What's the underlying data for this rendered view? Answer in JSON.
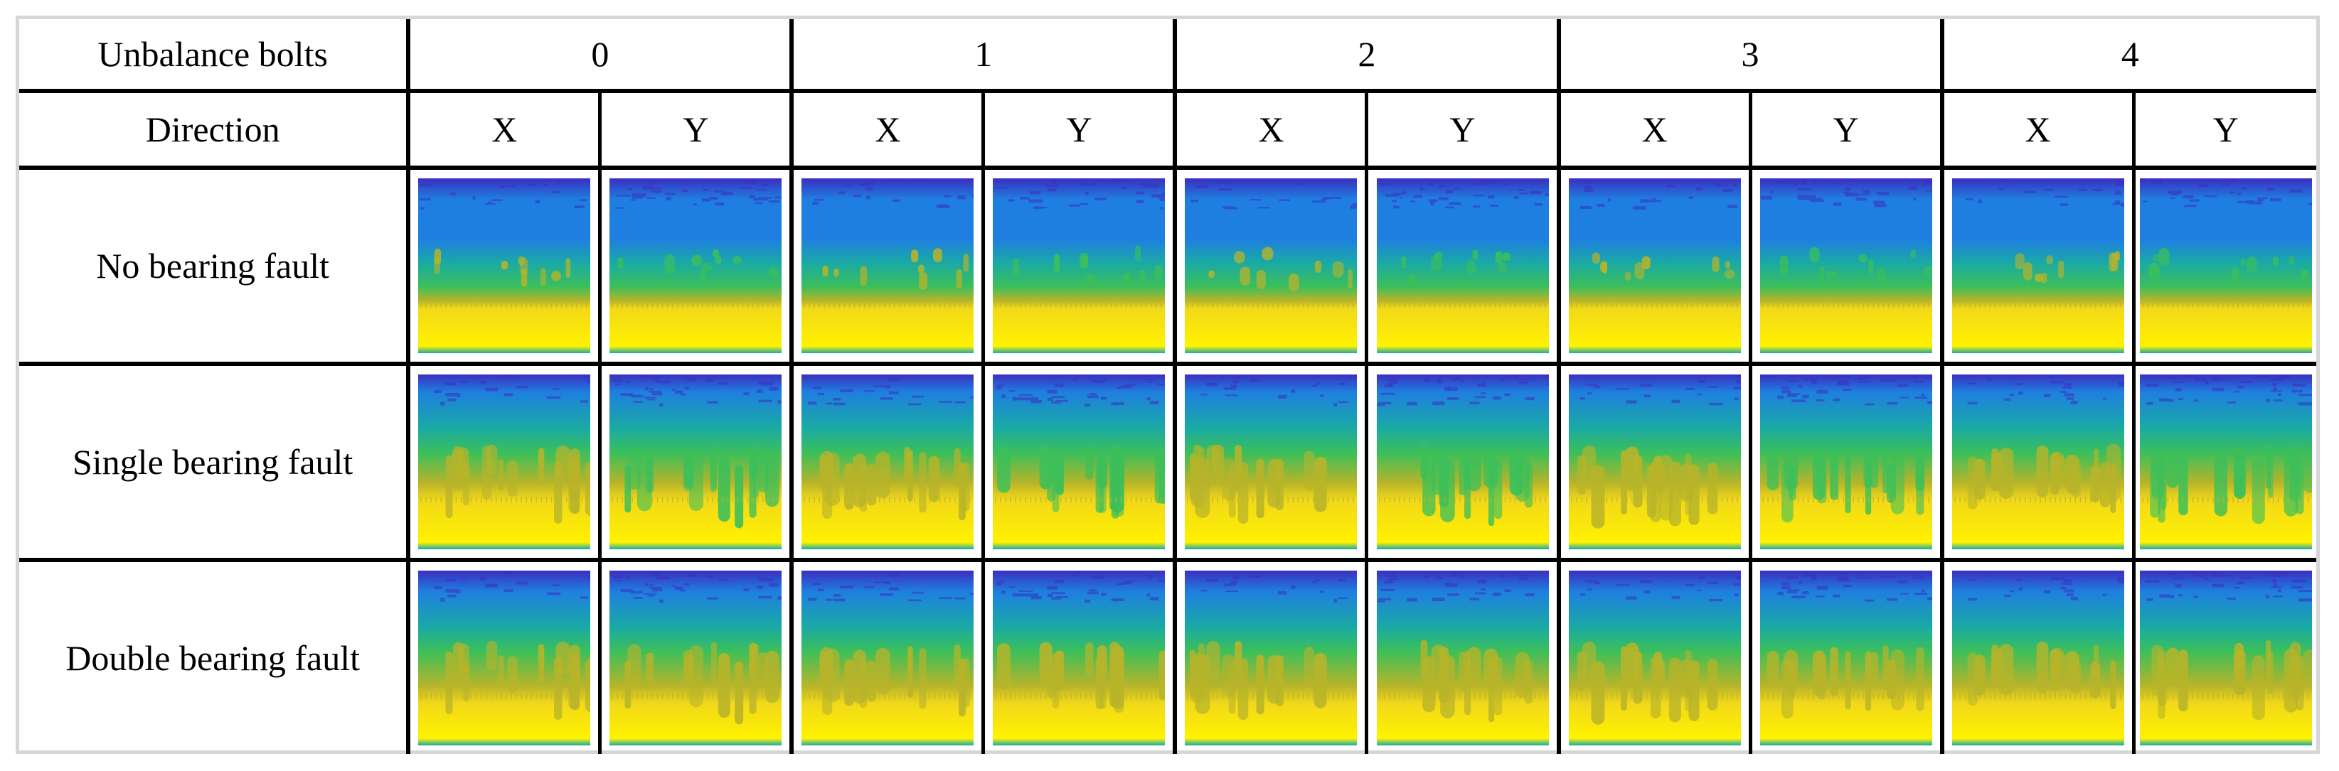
{
  "table": {
    "row_header_unbalance": "Unbalance bolts",
    "row_header_direction": "Direction",
    "bolt_counts": [
      "0",
      "1",
      "2",
      "3",
      "4"
    ],
    "directions": [
      "X",
      "Y"
    ],
    "rows": [
      {
        "label": "No bearing fault",
        "fault": "none"
      },
      {
        "label": "Single bearing fault",
        "fault": "single"
      },
      {
        "label": "Double bearing fault",
        "fault": "double"
      }
    ]
  },
  "colors": {
    "spectrogram_top": "#3a2fbf",
    "spectrogram_upper": "#1f7fe0",
    "spectrogram_mid": "#19a9a6",
    "spectrogram_green": "#3cbf5a",
    "spectrogram_olive": "#b8b42a",
    "spectrogram_low": "#f2d81a",
    "spectrogram_bottom": "#fff200",
    "rule": "#000000",
    "frame": "#d6d6d6"
  }
}
